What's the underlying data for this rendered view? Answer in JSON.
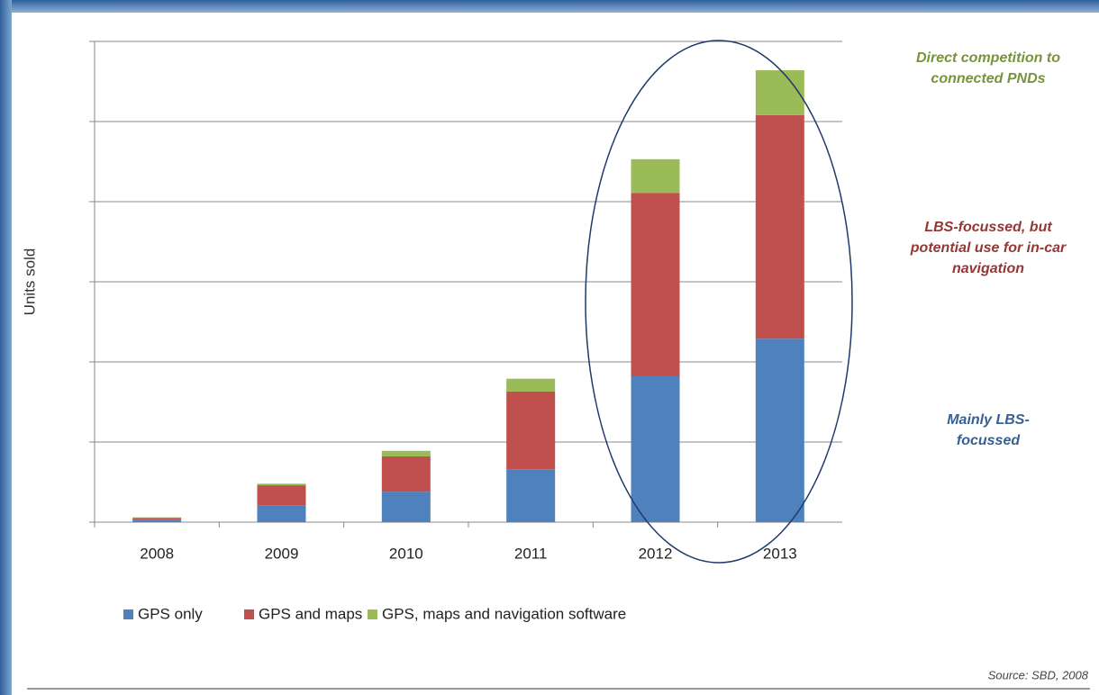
{
  "chart_data": {
    "type": "stacked_bar",
    "y_label": "Units sold",
    "categories": [
      "2008",
      "2009",
      "2010",
      "2011",
      "2012",
      "2013"
    ],
    "series": [
      {
        "name": "GPS only",
        "color": "#4f81bd",
        "values": [
          0.03,
          0.21,
          0.38,
          0.66,
          1.82,
          2.29
        ]
      },
      {
        "name": "GPS and maps",
        "color": "#c0504d",
        "values": [
          0.02,
          0.25,
          0.44,
          0.97,
          2.29,
          2.79
        ]
      },
      {
        "name": "GPS, maps and navigation software",
        "color": "#9bbb59",
        "values": [
          0.01,
          0.02,
          0.07,
          0.16,
          0.42,
          0.56
        ]
      }
    ],
    "ylim": [
      0,
      6
    ],
    "yticks": [
      0,
      1,
      2,
      3,
      4,
      5,
      6
    ],
    "grid": true,
    "annotations": [
      {
        "lines": [
          "Direct competition to",
          "connected PNDs"
        ],
        "color": "#77933c"
      },
      {
        "lines": [
          "LBS-focussed, but",
          "potential use for in-car",
          "navigation"
        ],
        "color": "#953735"
      },
      {
        "lines": [
          "Mainly LBS-",
          "focussed"
        ],
        "color": "#376092"
      }
    ],
    "source": "Source: SBD, 2008"
  }
}
